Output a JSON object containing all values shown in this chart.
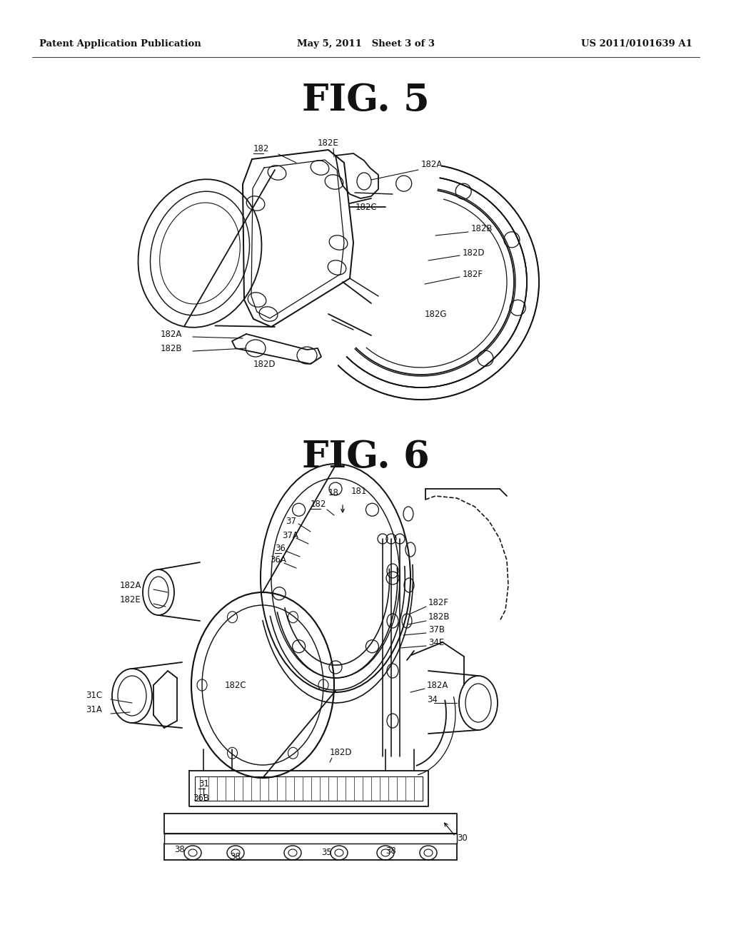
{
  "background_color": "#ffffff",
  "page_width": 10.24,
  "page_height": 13.2,
  "dpi": 100,
  "header_left": "Patent Application Publication",
  "header_center": "May 5, 2011   Sheet 3 of 3",
  "header_right": "US 2011/0101639 A1",
  "header_fontsize": 9.5,
  "fig5_title": "FIG. 5",
  "fig5_title_fontsize": 38,
  "fig6_title": "FIG. 6",
  "fig6_title_fontsize": 38,
  "line_color": "#111111",
  "label_fontsize": 8.5
}
